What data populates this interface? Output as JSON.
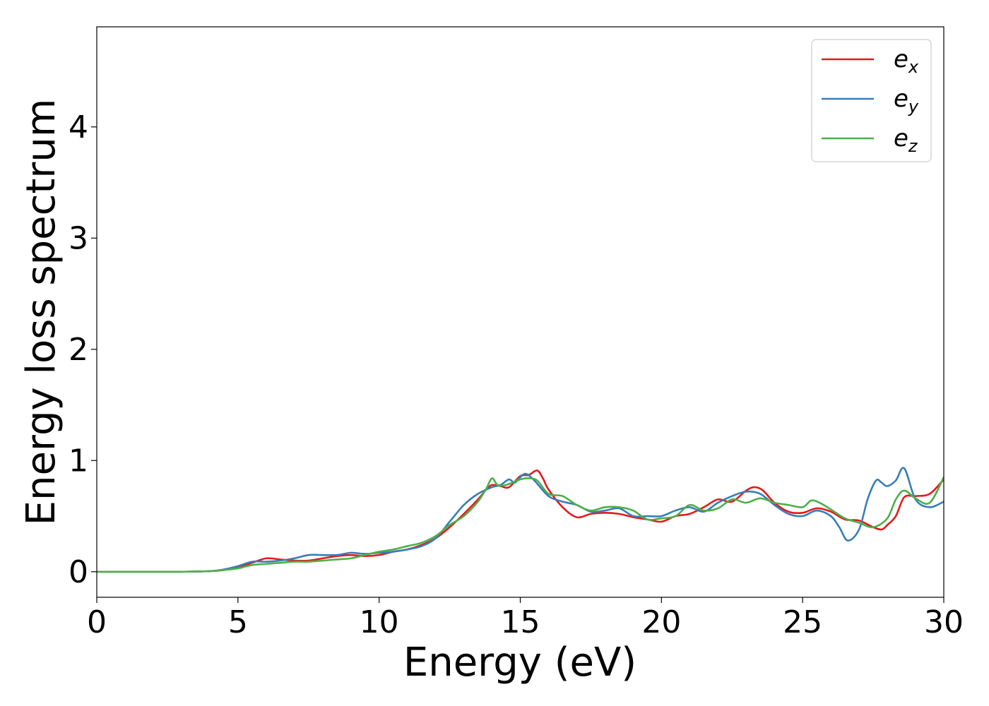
{
  "chart_data": {
    "type": "line",
    "xlabel": "Energy (eV)",
    "ylabel": "Energy loss spectrum",
    "xlim": [
      0,
      30
    ],
    "ylim": [
      -0.23,
      4.9
    ],
    "xticks": [
      0,
      5,
      10,
      15,
      20,
      25,
      30
    ],
    "yticks": [
      0,
      1,
      2,
      3,
      4
    ],
    "grid": false,
    "legend_position": "top-right",
    "series": [
      {
        "name": "e_x",
        "legend_base": "e",
        "legend_sub": "x",
        "color": "#e41a1c",
        "x": [
          0,
          1,
          2,
          3,
          4,
          4.5,
          5,
          5.5,
          6,
          6.5,
          7,
          7.5,
          8,
          8.5,
          9,
          9.5,
          10,
          10.5,
          11,
          11.5,
          12,
          12.5,
          13,
          13.5,
          13.8,
          14,
          14.3,
          14.6,
          15,
          15.3,
          15.6,
          15.8,
          16,
          16.5,
          17,
          17.5,
          18,
          18.5,
          19,
          19.5,
          20,
          20.5,
          21,
          21.5,
          22,
          22.5,
          23,
          23.3,
          23.6,
          24,
          24.5,
          25,
          25.5,
          26,
          26.5,
          27,
          27.5,
          27.8,
          28,
          28.3,
          28.6,
          29,
          29.5,
          30
        ],
        "y": [
          0,
          0,
          0,
          0,
          0.005,
          0.015,
          0.04,
          0.08,
          0.12,
          0.11,
          0.1,
          0.1,
          0.12,
          0.14,
          0.15,
          0.14,
          0.15,
          0.18,
          0.2,
          0.24,
          0.3,
          0.4,
          0.52,
          0.65,
          0.74,
          0.78,
          0.77,
          0.76,
          0.86,
          0.87,
          0.91,
          0.84,
          0.74,
          0.58,
          0.49,
          0.52,
          0.53,
          0.52,
          0.49,
          0.47,
          0.45,
          0.5,
          0.52,
          0.58,
          0.65,
          0.63,
          0.73,
          0.76,
          0.73,
          0.62,
          0.54,
          0.53,
          0.57,
          0.54,
          0.47,
          0.46,
          0.4,
          0.38,
          0.42,
          0.5,
          0.67,
          0.68,
          0.7,
          0.83
        ]
      },
      {
        "name": "e_y",
        "legend_base": "e",
        "legend_sub": "y",
        "color": "#377eb8",
        "x": [
          0,
          1,
          2,
          3,
          4,
          4.5,
          5,
          5.5,
          6,
          6.5,
          7,
          7.5,
          8,
          8.5,
          9,
          9.5,
          10,
          10.5,
          11,
          11.5,
          12,
          12.5,
          13,
          13.5,
          14,
          14.3,
          14.6,
          14.8,
          15,
          15.2,
          15.5,
          16,
          16.5,
          17,
          17.5,
          18,
          18.5,
          19,
          19.5,
          20,
          20.5,
          21,
          21.5,
          22,
          22.5,
          23,
          23.5,
          24,
          24.5,
          25,
          25.5,
          26,
          26.3,
          26.6,
          27,
          27.3,
          27.6,
          27.8,
          28,
          28.3,
          28.6,
          29,
          29.5,
          30
        ],
        "y": [
          0,
          0,
          0,
          0,
          0.005,
          0.02,
          0.05,
          0.09,
          0.09,
          0.1,
          0.12,
          0.15,
          0.15,
          0.15,
          0.17,
          0.16,
          0.17,
          0.18,
          0.2,
          0.23,
          0.3,
          0.45,
          0.6,
          0.7,
          0.76,
          0.78,
          0.83,
          0.8,
          0.85,
          0.88,
          0.82,
          0.68,
          0.63,
          0.6,
          0.54,
          0.55,
          0.57,
          0.5,
          0.5,
          0.5,
          0.55,
          0.58,
          0.54,
          0.62,
          0.68,
          0.72,
          0.7,
          0.6,
          0.52,
          0.5,
          0.55,
          0.5,
          0.4,
          0.28,
          0.38,
          0.65,
          0.82,
          0.8,
          0.77,
          0.82,
          0.93,
          0.65,
          0.58,
          0.63
        ]
      },
      {
        "name": "e_z",
        "legend_base": "e",
        "legend_sub": "z",
        "color": "#4daf4a",
        "x": [
          0,
          1,
          2,
          3,
          4,
          4.5,
          5,
          5.5,
          6,
          6.5,
          7,
          7.5,
          8,
          8.5,
          9,
          9.5,
          10,
          10.5,
          11,
          11.5,
          12,
          12.5,
          13,
          13.5,
          13.8,
          14,
          14.2,
          14.5,
          15,
          15.3,
          15.6,
          16,
          16.5,
          17,
          17.5,
          18,
          18.5,
          19,
          19.5,
          20,
          20.5,
          21,
          21.5,
          22,
          22.5,
          23,
          23.5,
          24,
          24.5,
          25,
          25.3,
          25.6,
          26,
          26.5,
          27,
          27.5,
          28,
          28.3,
          28.6,
          29,
          29.5,
          30
        ],
        "y": [
          0,
          0,
          0,
          0,
          0.005,
          0.015,
          0.03,
          0.06,
          0.07,
          0.08,
          0.09,
          0.09,
          0.1,
          0.11,
          0.12,
          0.15,
          0.18,
          0.2,
          0.23,
          0.26,
          0.32,
          0.42,
          0.5,
          0.63,
          0.75,
          0.84,
          0.78,
          0.78,
          0.83,
          0.84,
          0.82,
          0.7,
          0.68,
          0.6,
          0.55,
          0.58,
          0.58,
          0.55,
          0.47,
          0.48,
          0.5,
          0.6,
          0.55,
          0.57,
          0.65,
          0.62,
          0.66,
          0.62,
          0.6,
          0.58,
          0.64,
          0.62,
          0.56,
          0.48,
          0.44,
          0.4,
          0.48,
          0.65,
          0.73,
          0.66,
          0.62,
          0.85
        ]
      }
    ]
  }
}
